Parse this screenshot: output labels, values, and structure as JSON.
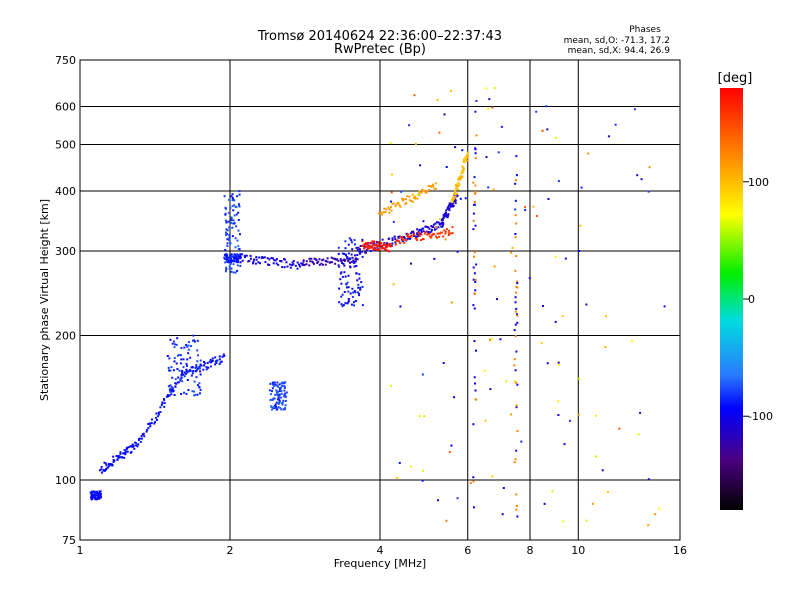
{
  "title": "Tromsø 20140624 22:36:00–22:37:43",
  "subtitle": "RwPretec (Bp)",
  "stats": {
    "header": "Phases",
    "line_o": "mean, sd,O: -71.3, 17.2",
    "line_x": "mean, sd,X:  94.4, 26.9"
  },
  "chart_data": {
    "type": "scatter",
    "title": "Tromsø 20140624 22:36:00–22:37:43",
    "subtitle": "RwPretec (Bp)",
    "xlabel": "Frequency [MHz]",
    "ylabel": "Stationary phase Virtual Height [km]",
    "x_scale": "log",
    "y_scale": "log",
    "xlim": [
      1,
      16
    ],
    "ylim": [
      75,
      750
    ],
    "x_ticks": [
      1,
      2,
      4,
      6,
      8,
      10,
      16
    ],
    "x_tick_labels": [
      "1",
      "2",
      "4",
      "6",
      "8",
      "10",
      "16"
    ],
    "y_ticks": [
      75,
      100,
      200,
      300,
      400,
      500,
      600,
      750
    ],
    "y_tick_labels": [
      "75",
      "100",
      "200",
      "300",
      "400",
      "500",
      "600",
      "750"
    ],
    "grid": true,
    "colorbar": {
      "label": "[deg]",
      "range": [
        -180,
        180
      ],
      "ticks": [
        100,
        0,
        -100
      ],
      "tick_labels": [
        "100",
        "0",
        "-100"
      ]
    },
    "series": [
      {
        "traces": [
          {
            "f": [
              1.05,
              1.1
            ],
            "h": [
              93,
              93
            ],
            "phase": -95
          },
          {
            "f": [
              1.1,
              1.3
            ],
            "h": [
              105,
              118
            ],
            "phase": -95
          },
          {
            "f": [
              1.3,
              1.6
            ],
            "h": [
              118,
              165
            ],
            "phase": -92
          },
          {
            "f": [
              1.6,
              1.95
            ],
            "h": [
              165,
              180
            ],
            "phase": -90
          },
          {
            "f": [
              1.95,
              2.1
            ],
            "h": [
              290,
              290
            ],
            "phase": -90
          },
          {
            "f": [
              2.1,
              2.8
            ],
            "h": [
              290,
              280
            ],
            "phase": -105
          },
          {
            "f": [
              2.8,
              3.6
            ],
            "h": [
              285,
              285
            ],
            "phase": -125
          },
          {
            "f": [
              3.6,
              4.5
            ],
            "h": [
              300,
              320
            ],
            "phase": -115
          },
          {
            "f": [
              4.5,
              5.3
            ],
            "h": [
              320,
              340
            ],
            "phase": -110
          },
          {
            "f": [
              5.3,
              5.7
            ],
            "h": [
              340,
              390
            ],
            "phase": -110
          },
          {
            "f": [
              4.0,
              5.2
            ],
            "h": [
              360,
              410
            ],
            "phase": 120
          },
          {
            "f": [
              5.6,
              6.0
            ],
            "h": [
              380,
              480
            ],
            "phase": 110
          },
          {
            "f": [
              3.7,
              4.2
            ],
            "h": [
              310,
              305
            ],
            "phase": 170
          },
          {
            "f": [
              4.3,
              5.6
            ],
            "h": [
              315,
              330
            ],
            "phase": 160
          }
        ]
      }
    ]
  }
}
